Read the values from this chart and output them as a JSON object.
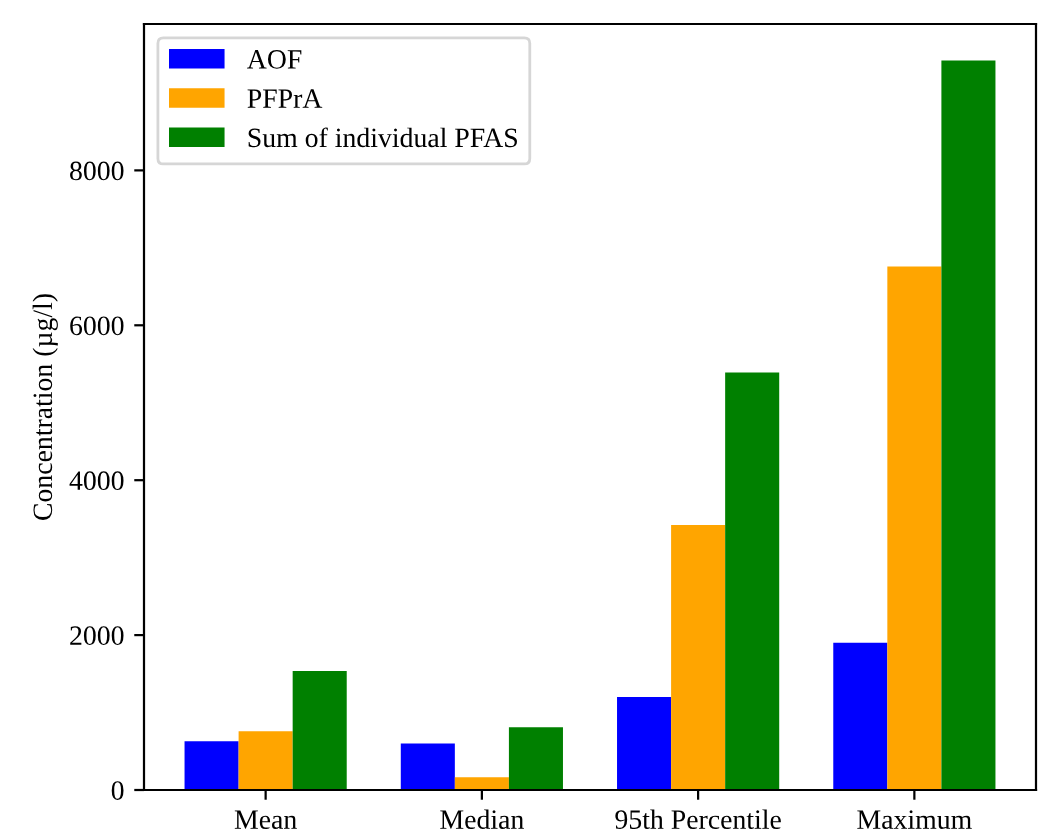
{
  "chart_data": {
    "type": "bar",
    "ylabel": "Concentration (µg/l)",
    "categories": [
      "Mean",
      "Median",
      "95th Percentile",
      "Maximum"
    ],
    "series": [
      {
        "name": "AOF",
        "color": "#0000ff",
        "values": [
          630,
          600,
          1200,
          1900
        ]
      },
      {
        "name": "PFPrA",
        "color": "#ffa500",
        "values": [
          760,
          165,
          3420,
          6760
        ]
      },
      {
        "name": "Sum of individual PFAS",
        "color": "#008000",
        "values": [
          1535,
          810,
          5390,
          9420
        ]
      }
    ],
    "ylim": [
      0,
      9890
    ],
    "yticks": [
      0,
      2000,
      4000,
      6000,
      8000
    ],
    "grid": false,
    "legend": "top left"
  }
}
